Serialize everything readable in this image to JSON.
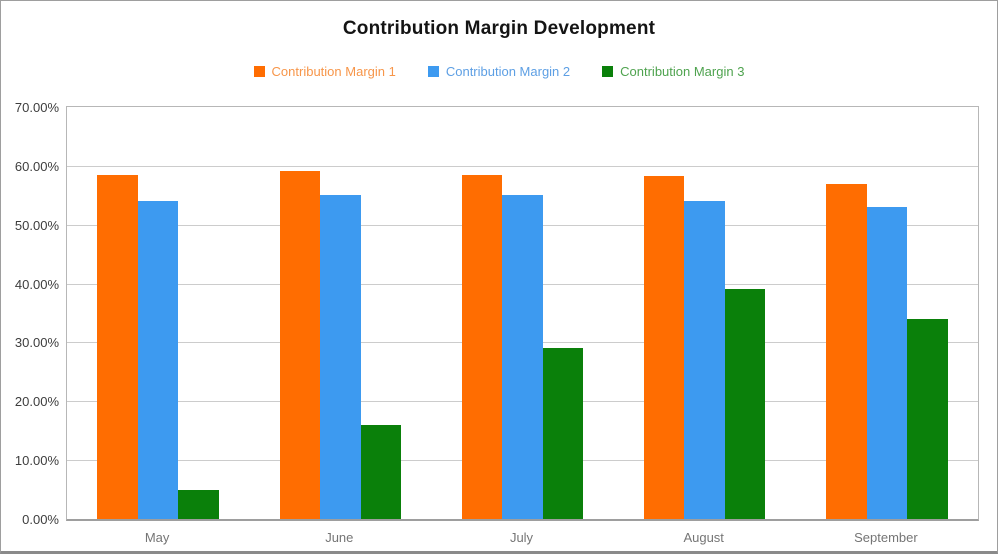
{
  "chart_data": {
    "type": "bar",
    "title": "Contribution Margin Development",
    "categories": [
      "May",
      "June",
      "July",
      "August",
      "September"
    ],
    "series": [
      {
        "name": "Contribution Margin 1",
        "color": "#ff6d01",
        "legend_text_color": "#f7964a",
        "values": [
          58.5,
          59.2,
          58.5,
          58.2,
          56.9
        ]
      },
      {
        "name": "Contribution Margin 2",
        "color": "#3d9af0",
        "legend_text_color": "#5d9fe4",
        "values": [
          54,
          55,
          55,
          54,
          53
        ]
      },
      {
        "name": "Contribution Margin 3",
        "color": "#0a800a",
        "legend_text_color": "#4fa34f",
        "values": [
          5,
          16,
          29,
          39,
          34
        ]
      }
    ],
    "xlabel": "",
    "ylabel": "",
    "ylim": [
      0,
      70
    ],
    "y_tick_step": 10,
    "y_tick_labels": [
      "0.00%",
      "10.00%",
      "20.00%",
      "30.00%",
      "40.00%",
      "50.00%",
      "60.00%",
      "70.00%"
    ],
    "grid": true,
    "legend_position": "top",
    "colors": {
      "axis_line": "#9e9e9e",
      "gridline": "#cccccc",
      "plot_border": "#b7b7b7",
      "tick_label": "#3d3d3d",
      "category_label": "#757575",
      "title": "#141414",
      "frame_border": "#9e9e9e"
    }
  }
}
